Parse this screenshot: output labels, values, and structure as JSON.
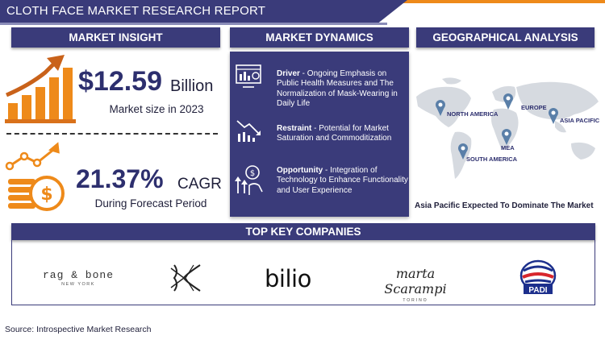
{
  "header": {
    "title": "CLOTH FACE MARKET RESEARCH REPORT"
  },
  "sections": {
    "insight": "MARKET INSIGHT",
    "dynamics": "MARKET DYNAMICS",
    "geo": "GEOGRAPHICAL ANALYSIS",
    "companies": "TOP KEY COMPANIES"
  },
  "insight": {
    "market_size_value": "$12.59",
    "market_size_unit": "Billion",
    "market_size_label": "Market size in 2023",
    "cagr_value": "21.37%",
    "cagr_unit": "CAGR",
    "cagr_label": "During Forecast Period"
  },
  "dynamics": [
    {
      "key": "Driver",
      "text": " - Ongoing Emphasis on Public Health Measures and The Normalization of Mask-Wearing in Daily Life",
      "icon": "monitor-analytics-icon"
    },
    {
      "key": "Restraint",
      "text": " - Potential for Market Saturation and Commoditization",
      "icon": "declining-chart-icon"
    },
    {
      "key": "Opportunity",
      "text": " - Integration of Technology to Enhance Functionality and User Experience",
      "icon": "growth-hand-icon"
    }
  ],
  "geo": {
    "regions": [
      "NORTH AMERICA",
      "EUROPE",
      "ASIA PACIFIC",
      "MEA",
      "SOUTH AMERICA"
    ],
    "caption": "Asia Pacific Expected To Dominate The Market"
  },
  "companies": {
    "logos": [
      {
        "name": "rag & bone",
        "sub": "NEW YORK"
      },
      {
        "name": "K"
      },
      {
        "name": "bilio"
      },
      {
        "name": "marta Scarampi",
        "sub": "TORINO"
      },
      {
        "name": "PADI"
      }
    ]
  },
  "footer": {
    "source": "Source: Introspective Market Research"
  },
  "colors": {
    "navy": "#3a3b7a",
    "orange": "#ee8a1a",
    "map_gray": "#d6dae0",
    "pin_blue": "#5a7fa8"
  }
}
